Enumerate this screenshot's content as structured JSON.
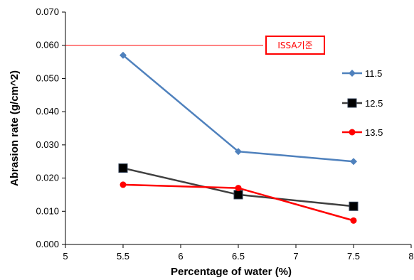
{
  "chart_data": {
    "type": "line",
    "xlabel": "Percentage of water (%)",
    "ylabel": "Abrasion rate (g/cm^2)",
    "xlim": [
      5,
      8
    ],
    "ylim": [
      0,
      0.07
    ],
    "xticks": [
      "5",
      "5.5",
      "6",
      "6.5",
      "7",
      "7.5",
      "8"
    ],
    "yticks": [
      "0.000",
      "0.010",
      "0.020",
      "0.030",
      "0.040",
      "0.050",
      "0.060",
      "0.070"
    ],
    "x": [
      5.5,
      6.5,
      7.5
    ],
    "series": [
      {
        "name": "11.5",
        "values": [
          0.057,
          0.028,
          0.025
        ],
        "color": "#4f81bd",
        "marker": "diamond"
      },
      {
        "name": "12.5",
        "values": [
          0.023,
          0.015,
          0.0115
        ],
        "color": "#404040",
        "marker": "square"
      },
      {
        "name": "13.5",
        "values": [
          0.018,
          0.017,
          0.0072
        ],
        "color": "#ff0000",
        "marker": "circle"
      }
    ],
    "reference_line": {
      "y": 0.06,
      "label": "ISSA기준",
      "color": "#ff0000"
    },
    "legend_position": "right",
    "grid": false
  }
}
